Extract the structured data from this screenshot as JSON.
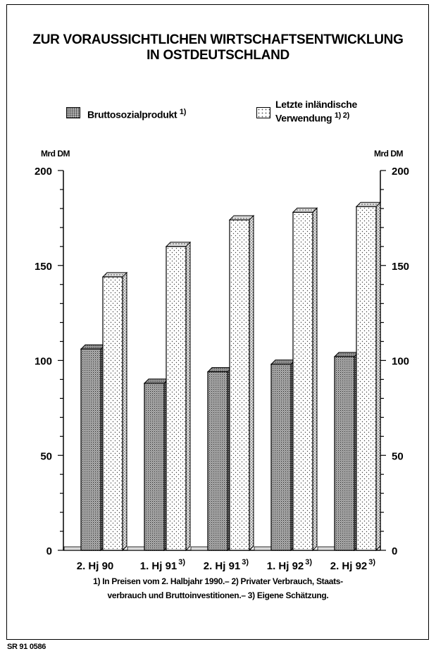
{
  "title_lines": [
    "ZUR VORAUSSICHTLICHEN WIRTSCHAFTSENTWICKLUNG",
    "IN OSTDEUTSCHLAND"
  ],
  "legend": {
    "series1": {
      "label": "Bruttosozialprodukt",
      "note": "1)"
    },
    "series2": {
      "line1": "Letzte inländische",
      "line2": "Verwendung",
      "note": "1) 2)"
    }
  },
  "unit_left": "Mrd DM",
  "unit_right": "Mrd DM",
  "footnote_lines": [
    "1) In Preisen vom 2. Halbjahr 1990.– 2) Privater Verbrauch, Staats-",
    "verbrauch und Bruttoinvestitionen.– 3) Eigene Schätzung."
  ],
  "source": "SR 91 0586",
  "chart_data": {
    "type": "bar",
    "categories": [
      "2. Hj 90",
      "1. Hj 91",
      "2. Hj 91",
      "1. Hj 92",
      "2. Hj 92"
    ],
    "category_notes": [
      "",
      "3)",
      "3)",
      "3)",
      "3)"
    ],
    "series": [
      {
        "name": "Bruttosozialprodukt",
        "values": [
          106,
          88,
          94,
          98,
          102
        ],
        "pattern": "dense"
      },
      {
        "name": "Letzte inländische Verwendung",
        "values": [
          144,
          160,
          174,
          178,
          181
        ],
        "pattern": "sparse"
      }
    ],
    "ylim": [
      0,
      200
    ],
    "yticks": [
      0,
      50,
      100,
      150,
      200
    ],
    "style": "3d-bars",
    "grid": false
  }
}
